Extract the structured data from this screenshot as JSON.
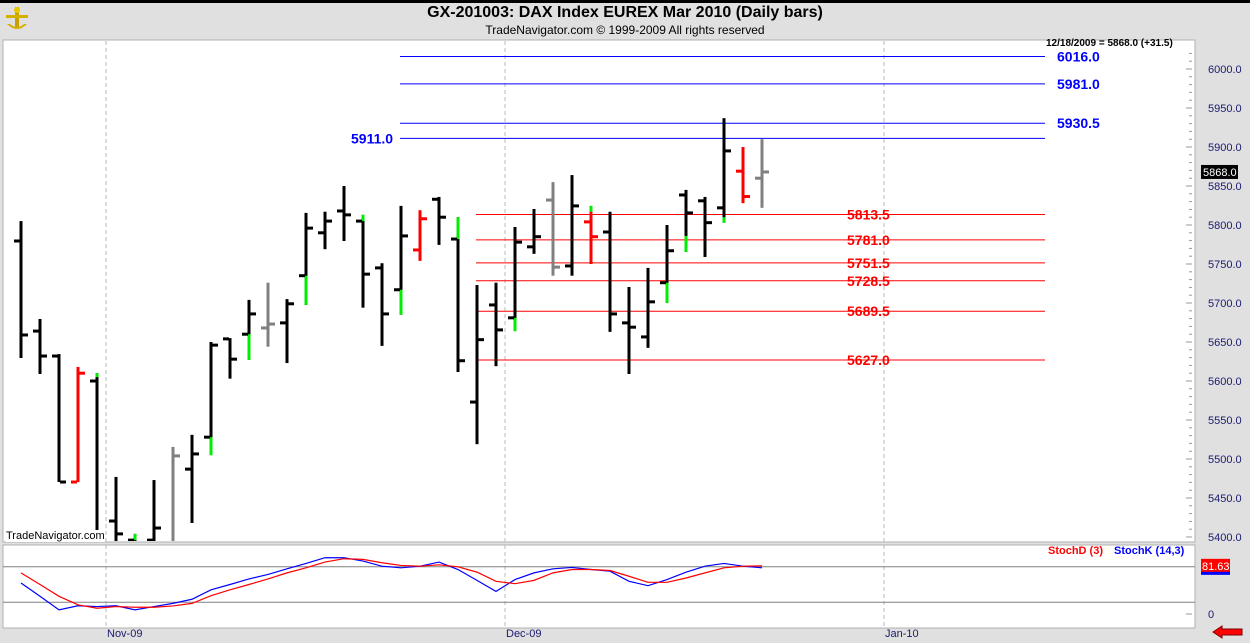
{
  "header": {
    "title": "GX-201003:  DAX Index EUREX Mar 2010  (Daily bars)",
    "subtitle": "TradeNavigator.com © 1999-2009 All rights reserved",
    "readout": "12/18/2009 = 5868.0 (+31.5)",
    "watermark": "TradeNavigator.com"
  },
  "colors": {
    "black": "#000000",
    "red": "#ff0000",
    "gray": "#808080",
    "green": "#00ee00",
    "level_blue": "#0000ff",
    "level_red": "#ff0000",
    "stochD": "#ff0000",
    "stochK": "#0000ff"
  },
  "price_axis": {
    "ticks": [
      "6000.0",
      "5950.0",
      "5900.0",
      "5850.0",
      "5800.0",
      "5750.0",
      "5700.0",
      "5650.0",
      "5600.0",
      "5550.0",
      "5500.0",
      "5450.0",
      "5400.0"
    ],
    "last_price": "5868.0",
    "range": [
      5400,
      6000
    ]
  },
  "levels": {
    "blue": [
      {
        "value": 6016.0,
        "label": "6016.0"
      },
      {
        "value": 5981.0,
        "label": "5981.0"
      },
      {
        "value": 5930.5,
        "label": "5930.5"
      },
      {
        "value": 5911.0,
        "label": "5911.0"
      }
    ],
    "red": [
      {
        "value": 5813.5,
        "label": "5813.5"
      },
      {
        "value": 5781.0,
        "label": "5781.0"
      },
      {
        "value": 5751.5,
        "label": "5751.5"
      },
      {
        "value": 5728.5,
        "label": "5728.5"
      },
      {
        "value": 5689.5,
        "label": "5689.5"
      },
      {
        "value": 5627.0,
        "label": "5627.0"
      }
    ]
  },
  "bars": [
    {
      "o": 5779.5,
      "h": 5805,
      "l": 5629.5,
      "c": 5659,
      "color": "black"
    },
    {
      "o": 5664,
      "h": 5679.5,
      "l": 5609,
      "c": 5632,
      "color": "black"
    },
    {
      "o": 5632,
      "h": 5634.5,
      "l": 5470.5,
      "c": 5470.5,
      "color": "black"
    },
    {
      "o": 5470.5,
      "h": 5618,
      "l": 5470.5,
      "c": 5610,
      "color": "red"
    },
    {
      "o": 5600,
      "h": 5610,
      "l": 5375,
      "c": 5399,
      "color": "black",
      "green": [
        5605,
        5610
      ]
    },
    {
      "o": 5420.5,
      "h": 5477,
      "l": 5375,
      "c": 5404,
      "color": "black"
    },
    {
      "o": 5396,
      "h": 5404,
      "l": 5385,
      "c": 5393,
      "color": "black",
      "green": [
        5396,
        5404
      ]
    },
    {
      "o": 5396,
      "h": 5473,
      "l": 5380,
      "c": 5411.5,
      "color": "black"
    },
    {
      "o": 5385,
      "h": 5515.5,
      "l": 5380,
      "c": 5504,
      "color": "gray"
    },
    {
      "o": 5487,
      "h": 5531,
      "l": 5418,
      "c": 5506.5,
      "color": "black"
    },
    {
      "o": 5528,
      "h": 5650,
      "l": 5505,
      "c": 5646,
      "color": "black",
      "green": [
        5505,
        5528
      ]
    },
    {
      "o": 5654,
      "h": 5655,
      "l": 5603,
      "c": 5628,
      "color": "black"
    },
    {
      "o": 5660,
      "h": 5704,
      "l": 5627,
      "c": 5686,
      "color": "black",
      "green": [
        5627,
        5660
      ]
    },
    {
      "o": 5668,
      "h": 5726,
      "l": 5644,
      "c": 5673,
      "color": "gray"
    },
    {
      "o": 5674.5,
      "h": 5705,
      "l": 5623,
      "c": 5699,
      "color": "black"
    },
    {
      "o": 5735,
      "h": 5815.5,
      "l": 5697.5,
      "c": 5796,
      "color": "black",
      "green": [
        5697.5,
        5735
      ]
    },
    {
      "o": 5790,
      "h": 5817,
      "l": 5769,
      "c": 5805,
      "color": "black"
    },
    {
      "o": 5818,
      "h": 5850,
      "l": 5779.5,
      "c": 5813,
      "color": "black"
    },
    {
      "o": 5805,
      "h": 5813,
      "l": 5694,
      "c": 5737,
      "color": "black",
      "green": [
        5805,
        5813
      ]
    },
    {
      "o": 5745,
      "h": 5751,
      "l": 5645,
      "c": 5686,
      "color": "black"
    },
    {
      "o": 5717,
      "h": 5824.5,
      "l": 5685,
      "c": 5786,
      "color": "black",
      "green": [
        5685,
        5717
      ]
    },
    {
      "o": 5768,
      "h": 5819,
      "l": 5754,
      "c": 5808,
      "color": "red"
    },
    {
      "o": 5833,
      "h": 5836,
      "l": 5774.5,
      "c": 5810,
      "color": "black"
    },
    {
      "o": 5782,
      "h": 5810,
      "l": 5611.5,
      "c": 5626,
      "color": "black",
      "green": [
        5782,
        5810
      ]
    },
    {
      "o": 5573,
      "h": 5723,
      "l": 5519,
      "c": 5653,
      "color": "black"
    },
    {
      "o": 5697.5,
      "h": 5726,
      "l": 5619,
      "c": 5665.5,
      "color": "black"
    },
    {
      "o": 5681,
      "h": 5797.5,
      "l": 5664,
      "c": 5778,
      "color": "black",
      "green": [
        5664,
        5681
      ]
    },
    {
      "o": 5772,
      "h": 5820.5,
      "l": 5763,
      "c": 5785,
      "color": "black"
    },
    {
      "o": 5832,
      "h": 5855,
      "l": 5735,
      "c": 5746,
      "color": "gray"
    },
    {
      "o": 5747.5,
      "h": 5864,
      "l": 5735,
      "c": 5824.5,
      "color": "black"
    },
    {
      "o": 5804,
      "h": 5824.5,
      "l": 5750,
      "c": 5785,
      "color": "red",
      "green": [
        5817,
        5824.5
      ]
    },
    {
      "o": 5791,
      "h": 5817,
      "l": 5663,
      "c": 5686,
      "color": "black"
    },
    {
      "o": 5674.5,
      "h": 5720.5,
      "l": 5609,
      "c": 5669,
      "color": "black"
    },
    {
      "o": 5656.5,
      "h": 5745,
      "l": 5642.5,
      "c": 5701.5,
      "color": "black"
    },
    {
      "o": 5726,
      "h": 5800,
      "l": 5700,
      "c": 5767,
      "color": "black",
      "green": [
        5700,
        5726
      ]
    },
    {
      "o": 5838.5,
      "h": 5845,
      "l": 5765.5,
      "c": 5815.5,
      "color": "black",
      "green": [
        5765.5,
        5786
      ]
    },
    {
      "o": 5831,
      "h": 5836,
      "l": 5759,
      "c": 5803,
      "color": "black"
    },
    {
      "o": 5822,
      "h": 5937,
      "l": 5803,
      "c": 5895,
      "color": "black",
      "green": [
        5803,
        5810
      ]
    },
    {
      "o": 5869,
      "h": 5900,
      "l": 5828,
      "c": 5836.5,
      "color": "red"
    },
    {
      "o": 5860,
      "h": 5910,
      "l": 5822,
      "c": 5868,
      "color": "gray"
    }
  ],
  "stochastic": {
    "d_label": "StochD (3)",
    "k_label": "StochK (14,3)",
    "readout": "81.63",
    "zero_label": "0",
    "levels": [
      80,
      20
    ],
    "K": [
      52.6,
      30,
      7,
      14,
      12.6,
      14,
      7,
      12.6,
      18,
      25,
      41,
      50,
      59.4,
      67,
      76.6,
      85.7,
      95.4,
      95.4,
      89.7,
      81,
      78.3,
      81,
      88,
      75.4,
      57,
      38.3,
      58.3,
      69.7,
      76.6,
      78.9,
      75.4,
      72.6,
      55.4,
      48,
      58.3,
      70.9,
      81,
      85.7,
      81,
      78.3
    ],
    "D": [
      69.7,
      50,
      30,
      15.5,
      9.7,
      12.6,
      11.5,
      11.5,
      13.7,
      18,
      31,
      41,
      50,
      59.4,
      69.7,
      78.3,
      88,
      93.7,
      92.6,
      86.9,
      82.3,
      81,
      83.4,
      80,
      71,
      55.4,
      51.4,
      57,
      69.7,
      75.4,
      75.4,
      73.7,
      64,
      53.7,
      53.7,
      61,
      69.7,
      78.3,
      81,
      81.63
    ]
  },
  "date_axis": {
    "labels": [
      "Nov-09",
      "Dec-09",
      "Jan-10"
    ]
  }
}
